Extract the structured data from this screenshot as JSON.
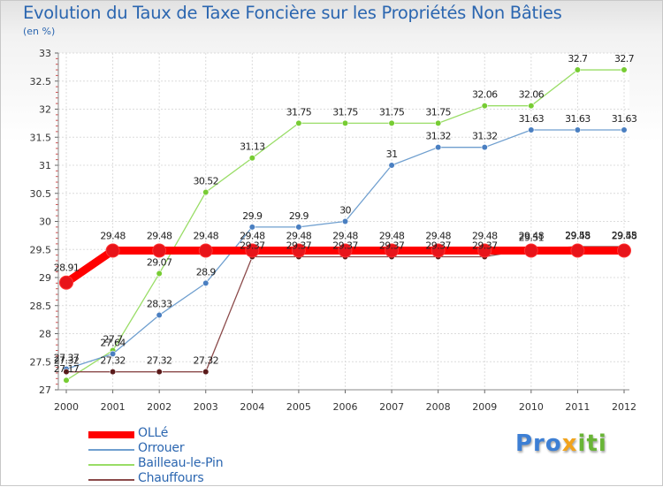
{
  "header": {
    "title": "Evolution du Taux de Taxe Foncière sur les Propriétés Non Bâties",
    "subtitle": "(en %)"
  },
  "legend": {
    "items": [
      {
        "label": "OLLé",
        "color": "#ff0000"
      },
      {
        "label": "Orrouer",
        "color": "#6f9fcf"
      },
      {
        "label": "Bailleau-le-Pin",
        "color": "#99dd66"
      },
      {
        "label": "Chauffours",
        "color": "#8b4a4a"
      }
    ]
  },
  "logo": {
    "parts": [
      "Pro",
      "x",
      "iti"
    ]
  },
  "chart_data": {
    "type": "line",
    "title": "Evolution du Taux de Taxe Foncière sur les Propriétés Non Bâties",
    "ylabel": "(en %)",
    "xlabel": "",
    "categories": [
      "2000",
      "2001",
      "2002",
      "2003",
      "2004",
      "2005",
      "2006",
      "2007",
      "2008",
      "2009",
      "2010",
      "2011",
      "2012"
    ],
    "ylim": [
      27,
      33
    ],
    "yticks": [
      "27",
      "27.5",
      "28",
      "28.5",
      "29",
      "29.5",
      "30",
      "30.5",
      "31",
      "31.5",
      "32",
      "32.5",
      "33"
    ],
    "grid": true,
    "series": [
      {
        "name": "Bailleau-le-Pin",
        "color": "#99dd66",
        "marker": "#77cc33",
        "values": [
          27.17,
          27.7,
          29.07,
          30.52,
          31.13,
          31.75,
          31.75,
          31.75,
          31.75,
          32.06,
          32.06,
          32.7,
          32.7
        ],
        "labels": [
          "27.17",
          "27.7",
          "29.07",
          "30.52",
          "31.13",
          "31.75",
          "31.75",
          "31.75",
          "31.75",
          "32.06",
          "32.06",
          "32.7",
          "32.7"
        ]
      },
      {
        "name": "Orrouer",
        "color": "#6f9fcf",
        "marker": "#4a7fc1",
        "values": [
          27.37,
          27.64,
          28.33,
          28.9,
          29.9,
          29.9,
          30,
          31,
          31.32,
          31.32,
          31.63,
          31.63,
          31.63
        ],
        "labels": [
          "27.37",
          "27.64",
          "28.33",
          "28.9",
          "29.9",
          "29.9",
          "30",
          "31",
          "31.32",
          "31.32",
          "31.63",
          "31.63",
          "31.63"
        ]
      },
      {
        "name": "Chauffours",
        "color": "#8b4a4a",
        "marker": "#5a1a1a",
        "values": [
          27.32,
          27.32,
          27.32,
          27.32,
          29.37,
          29.37,
          29.37,
          29.37,
          29.37,
          29.37,
          29.51,
          29.55,
          29.55
        ],
        "labels": [
          "27.32",
          "27.32",
          "27.32",
          "27.32",
          "29.37",
          "29.37",
          "29.37",
          "29.37",
          "29.37",
          "29.37",
          "29.51",
          "29.55",
          "29.55"
        ]
      },
      {
        "name": "OLLé",
        "color": "#ff0000",
        "marker": "#e8141a",
        "values": [
          28.91,
          29.48,
          29.48,
          29.48,
          29.48,
          29.48,
          29.48,
          29.48,
          29.48,
          29.48,
          29.48,
          29.48,
          29.48
        ],
        "labels": [
          "28.91",
          "29.48",
          "29.48",
          "29.48",
          "29.48",
          "29.48",
          "29.48",
          "29.48",
          "29.48",
          "29.48",
          "29.48",
          "29.48",
          "29.48"
        ]
      }
    ]
  }
}
